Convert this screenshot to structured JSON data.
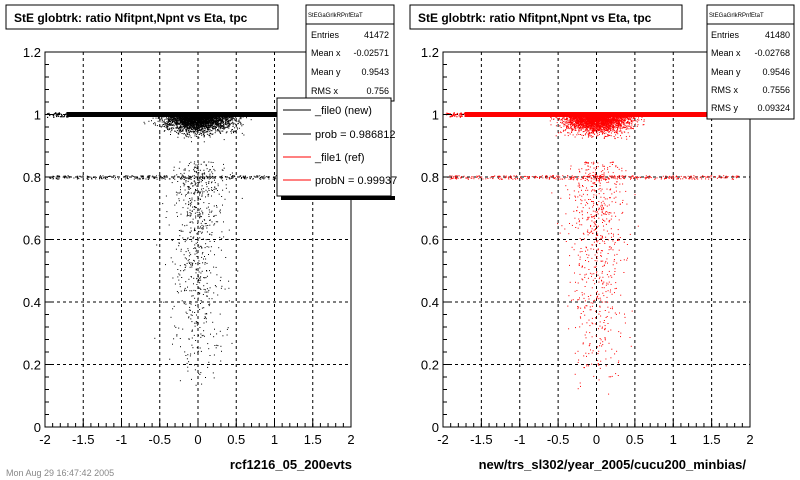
{
  "chart_data": [
    {
      "type": "scatter",
      "title": "StE globtrk: ratio Nfitpnt,Npnt vs Eta, tpc",
      "xlabel": "rcf1216_05_200evts",
      "xlim": [
        -2,
        2
      ],
      "ylim": [
        0,
        1.2
      ],
      "x_ticks": [
        "-2",
        "-1.5",
        "-1",
        "-0.5",
        "0",
        "0.5",
        "1",
        "1.5",
        "2"
      ],
      "y_ticks": [
        "0",
        "0.2",
        "0.4",
        "0.6",
        "0.8",
        "1",
        "1.2"
      ],
      "grid": true,
      "color": "#000000",
      "stats": {
        "name": "StEGaGrlkRPnfEtaT",
        "entries_label": "Entries",
        "entries": "41472",
        "meanx_label": "Mean x",
        "meanx": "-0.02571",
        "meany_label": "Mean y",
        "meany": "0.9543",
        "rmsx_label": "RMS x",
        "rmsx": "0.756"
      },
      "legend": [
        {
          "label": "_file0 (new)",
          "color": "#000000"
        },
        {
          "label": "prob = 0.986812",
          "color": "#000000"
        },
        {
          "label": "_file1 (ref)",
          "color": "#ff0000"
        },
        {
          "label": "probN = 0.99937",
          "color": "#ff0000"
        }
      ]
    },
    {
      "type": "scatter",
      "title": "StE globtrk: ratio Nfitpnt,Npnt vs Eta, tpc",
      "xlabel": "new/trs_sl302/year_2005/cucu200_minbias/",
      "xlim": [
        -2,
        2
      ],
      "ylim": [
        0,
        1.2
      ],
      "x_ticks": [
        "-2",
        "-1.5",
        "-1",
        "-0.5",
        "0",
        "0.5",
        "1",
        "1.5",
        "2"
      ],
      "y_ticks": [
        "0",
        "0.2",
        "0.4",
        "0.6",
        "0.8",
        "1",
        "1.2"
      ],
      "grid": true,
      "color": "#ff0000",
      "stats": {
        "name": "StEGaGrlkRPnfEtaT",
        "entries_label": "Entries",
        "entries": "41480",
        "meanx_label": "Mean x",
        "meanx": "-0.02768",
        "meany_label": "Mean y",
        "meany": "0.9546",
        "rmsx_label": "RMS x",
        "rmsx": "0.7556",
        "rmsy_label": "RMS y",
        "rmsy": "0.09324"
      }
    }
  ],
  "footer": "Mon Aug 29 16:47:42 2005"
}
